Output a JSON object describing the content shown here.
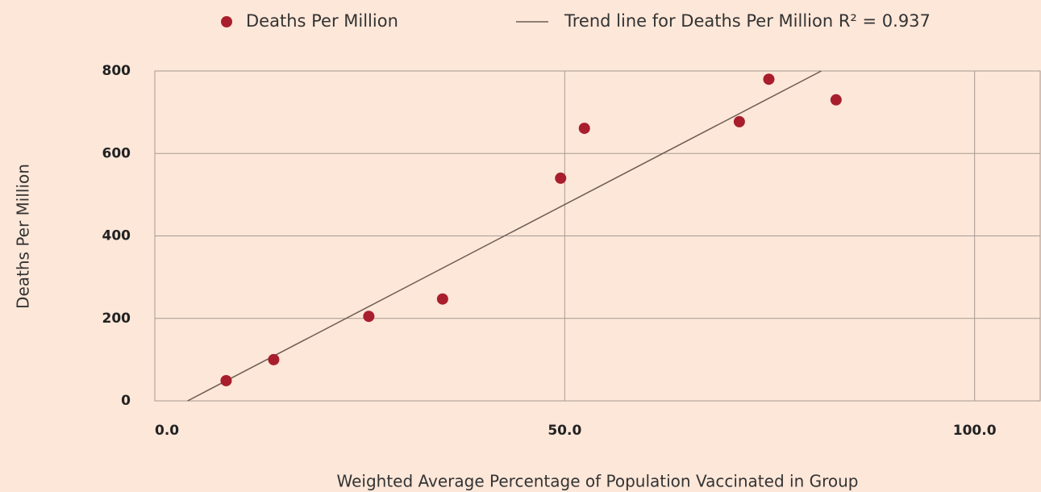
{
  "chart_data": {
    "type": "scatter",
    "x_label": "Weighted Average Percentage of Population Vaccinated in Group",
    "y_label": "Deaths Per Million",
    "series": [
      {
        "name": "Deaths Per Million",
        "color": "#a81e2d",
        "x": [
          8.7,
          14.5,
          26.1,
          35.1,
          49.5,
          52.4,
          71.3,
          74.9,
          83.1
        ],
        "values": [
          49,
          100,
          205,
          247,
          540,
          661,
          677,
          780,
          730
        ]
      }
    ],
    "trend": {
      "name": "Trend line for Deaths Per Million R² = 0.937",
      "color": "#6e5c52",
      "x": [
        4.0,
        81.3
      ],
      "values": [
        0,
        800
      ]
    },
    "xlim": [
      0,
      108
    ],
    "xticks": [
      {
        "value": 0,
        "label": "0.0"
      },
      {
        "value": 50,
        "label": "50.0"
      },
      {
        "value": 100,
        "label": "100.0"
      }
    ],
    "ylim": [
      0,
      800
    ],
    "yticks": [
      0,
      200,
      400,
      600,
      800
    ],
    "grid": true
  }
}
